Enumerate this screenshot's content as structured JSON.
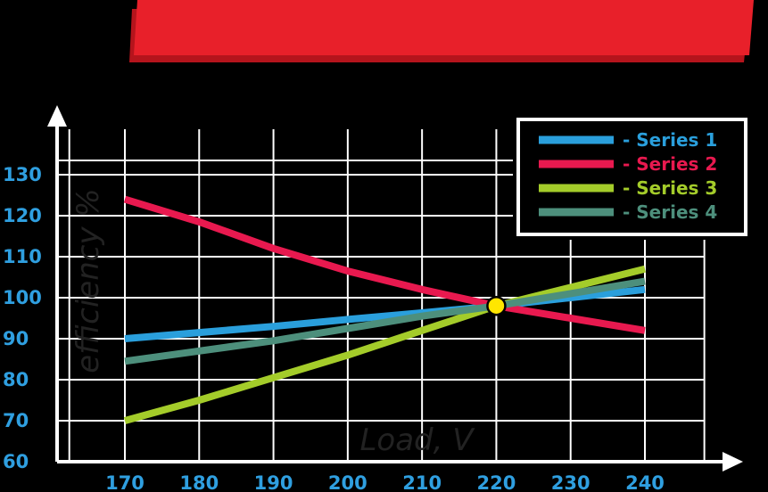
{
  "colors": {
    "background": "#000000",
    "banner": "#e8202a",
    "banner_shadow": "#b5141c",
    "grid": "#ffffff",
    "tick_labels": "#2f9fe0",
    "axis_title": "#222222",
    "marker": "#ffe600"
  },
  "chart_data": {
    "type": "line",
    "title": "",
    "xlabel": "Load, V",
    "ylabel": "efficiency  %",
    "x_ticks": [
      170,
      180,
      190,
      200,
      210,
      220,
      230,
      240
    ],
    "y_ticks": [
      60,
      70,
      80,
      90,
      100,
      110,
      120,
      130
    ],
    "xlim": [
      163,
      250
    ],
    "ylim": [
      60,
      135
    ],
    "grid": true,
    "legend_position": "top-right",
    "series": [
      {
        "name": "- Series 1",
        "color": "#2a9fdc",
        "x": [
          170,
          180,
          190,
          200,
          210,
          220,
          230,
          240
        ],
        "y": [
          90,
          91.5,
          93,
          94.7,
          96.3,
          98,
          100,
          102
        ]
      },
      {
        "name": "- Series 2",
        "color": "#e8194f",
        "x": [
          170,
          180,
          190,
          200,
          210,
          220,
          230,
          240
        ],
        "y": [
          124,
          118.5,
          112,
          106.5,
          102,
          98,
          95,
          92
        ]
      },
      {
        "name": "- Series 3",
        "color": "#a4cc2a",
        "x": [
          170,
          180,
          190,
          200,
          210,
          220,
          230,
          240
        ],
        "y": [
          70,
          75,
          80.5,
          86,
          92,
          98,
          102.5,
          107
        ]
      },
      {
        "name": "- Series 4",
        "color": "#4d8f7c",
        "x": [
          170,
          180,
          190,
          200,
          210,
          220,
          230,
          240
        ],
        "y": [
          84.5,
          87,
          89.5,
          92.5,
          95.5,
          98,
          101,
          104
        ]
      }
    ],
    "annotations": [
      {
        "type": "marker",
        "x": 220,
        "y": 98
      }
    ]
  }
}
